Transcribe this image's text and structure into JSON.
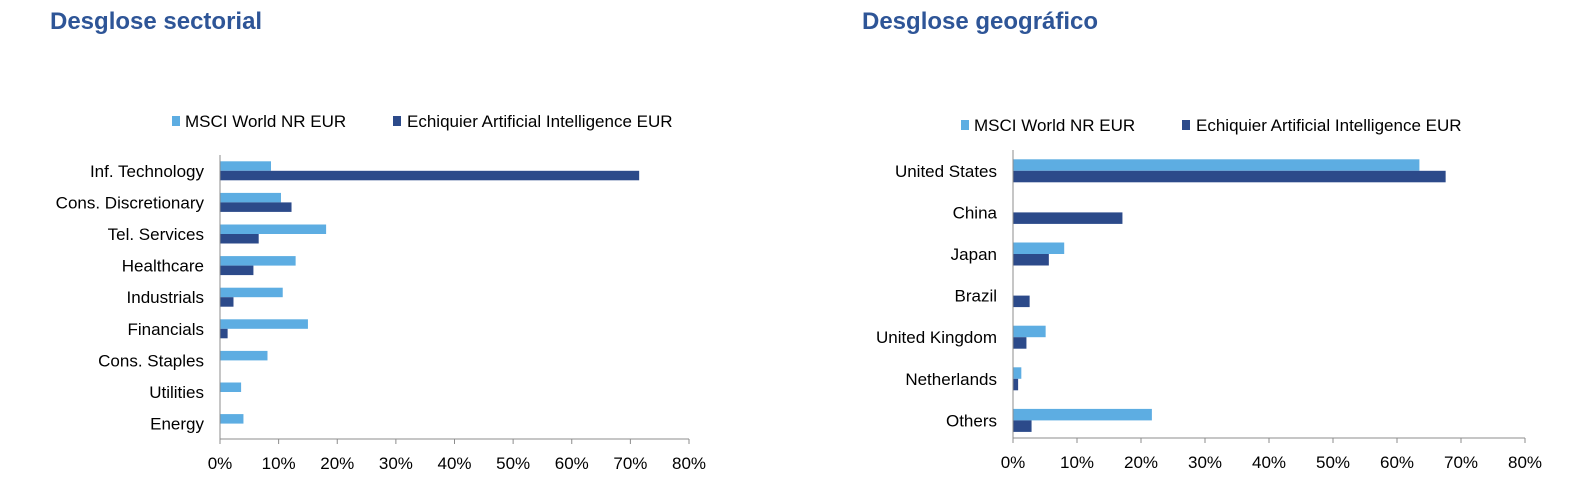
{
  "titles": [
    "Desglose sectorial",
    "Desglose geográfico"
  ],
  "colors": {
    "msci": "#5dade2",
    "fund": "#2c4a8a",
    "axis": "#8c8c8c",
    "title": "#2e5597"
  },
  "chart_data": [
    {
      "type": "bar",
      "orientation": "horizontal",
      "title": "Desglose sectorial",
      "categories": [
        "Inf. Technology",
        "Cons. Discretionary",
        "Tel. Services",
        "Healthcare",
        "Industrials",
        "Financials",
        "Cons. Staples",
        "Utilities",
        "Energy"
      ],
      "series": [
        {
          "name": "MSCI World NR EUR",
          "values": [
            8.7,
            10.4,
            18.1,
            12.9,
            10.7,
            15.0,
            8.1,
            3.6,
            4.0
          ]
        },
        {
          "name": "Echiquier Artificial Intelligence EUR",
          "values": [
            71.5,
            12.2,
            6.6,
            5.7,
            2.3,
            1.3,
            0,
            0,
            0
          ]
        }
      ],
      "xlim": [
        0,
        80
      ],
      "ticks": [
        "0%",
        "10%",
        "20%",
        "30%",
        "40%",
        "50%",
        "60%",
        "70%",
        "80%"
      ],
      "legend": "top"
    },
    {
      "type": "bar",
      "orientation": "horizontal",
      "title": "Desglose geográfico",
      "categories": [
        "United States",
        "China",
        "Japan",
        "Brazil",
        "United Kingdom",
        "Netherlands",
        "Others"
      ],
      "series": [
        {
          "name": "MSCI World NR EUR",
          "values": [
            63.5,
            0,
            8.0,
            0,
            5.1,
            1.3,
            21.7
          ]
        },
        {
          "name": "Echiquier Artificial Intelligence EUR",
          "values": [
            67.6,
            17.1,
            5.6,
            2.6,
            2.1,
            0.8,
            2.9
          ]
        }
      ],
      "xlim": [
        0,
        80
      ],
      "ticks": [
        "0%",
        "10%",
        "20%",
        "30%",
        "40%",
        "50%",
        "60%",
        "70%",
        "80%"
      ],
      "legend": "top"
    }
  ]
}
